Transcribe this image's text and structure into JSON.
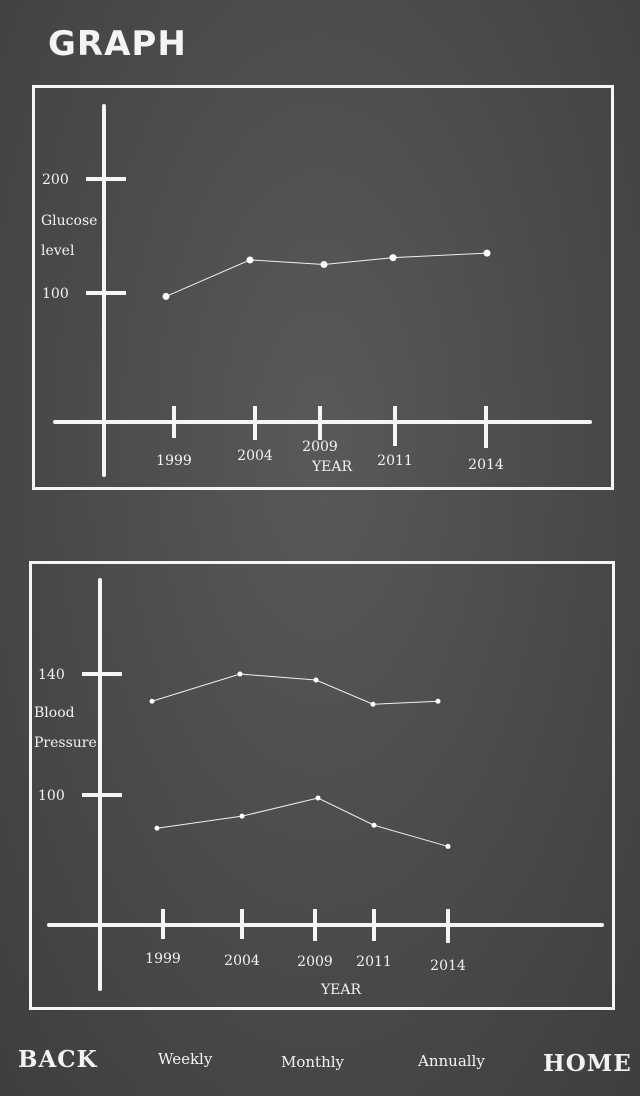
{
  "header": {
    "title": "GRAPH"
  },
  "nav": {
    "back": "BACK",
    "weekly": "Weekly",
    "monthly": "Monthly",
    "annually": "Annually",
    "home": "HOME"
  },
  "colors": {
    "background": "#4a4a4a",
    "chalk": "#f5f5f5"
  },
  "chart_data": [
    {
      "type": "line",
      "title": "",
      "xlabel": "YEAR",
      "ylabel": "Glucose level",
      "ylabel_lines": [
        "Glucose",
        "level"
      ],
      "categories": [
        "1999",
        "2004",
        "2009",
        "2011",
        "2014"
      ],
      "yticks": [
        100,
        200
      ],
      "ylim": [
        0,
        250
      ],
      "grid": false,
      "series": [
        {
          "values": [
            97,
            129,
            125,
            131,
            135
          ]
        }
      ]
    },
    {
      "type": "line",
      "title": "",
      "xlabel": "YEAR",
      "ylabel": "Blood Pressure",
      "ylabel_lines": [
        "Blood",
        "Pressure"
      ],
      "categories": [
        "1999",
        "2004",
        "2009",
        "2011",
        "2014"
      ],
      "yticks": [
        100,
        140
      ],
      "ylim": [
        70,
        155
      ],
      "grid": false,
      "series": [
        {
          "values": [
            131,
            140,
            138,
            130,
            131
          ]
        },
        {
          "values": [
            89,
            93,
            99,
            90,
            83
          ]
        }
      ]
    }
  ]
}
